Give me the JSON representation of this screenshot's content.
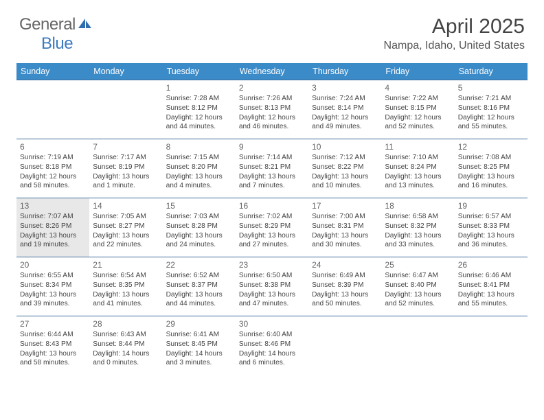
{
  "brand": {
    "part1": "General",
    "part2": "Blue"
  },
  "title": "April 2025",
  "location": "Nampa, Idaho, United States",
  "colors": {
    "header_bg": "#3b8bc9",
    "header_text": "#ffffff",
    "cell_border": "#3b6a9a",
    "highlight_bg": "#e8e8e8",
    "body_text": "#444444",
    "brand_blue": "#3b7bbf",
    "brand_gray": "#666666"
  },
  "weekdays": [
    "Sunday",
    "Monday",
    "Tuesday",
    "Wednesday",
    "Thursday",
    "Friday",
    "Saturday"
  ],
  "weeks": [
    [
      null,
      null,
      {
        "n": "1",
        "sr": "7:28 AM",
        "ss": "8:12 PM",
        "dl": "12 hours and 44 minutes."
      },
      {
        "n": "2",
        "sr": "7:26 AM",
        "ss": "8:13 PM",
        "dl": "12 hours and 46 minutes."
      },
      {
        "n": "3",
        "sr": "7:24 AM",
        "ss": "8:14 PM",
        "dl": "12 hours and 49 minutes."
      },
      {
        "n": "4",
        "sr": "7:22 AM",
        "ss": "8:15 PM",
        "dl": "12 hours and 52 minutes."
      },
      {
        "n": "5",
        "sr": "7:21 AM",
        "ss": "8:16 PM",
        "dl": "12 hours and 55 minutes."
      }
    ],
    [
      {
        "n": "6",
        "sr": "7:19 AM",
        "ss": "8:18 PM",
        "dl": "12 hours and 58 minutes."
      },
      {
        "n": "7",
        "sr": "7:17 AM",
        "ss": "8:19 PM",
        "dl": "13 hours and 1 minute."
      },
      {
        "n": "8",
        "sr": "7:15 AM",
        "ss": "8:20 PM",
        "dl": "13 hours and 4 minutes."
      },
      {
        "n": "9",
        "sr": "7:14 AM",
        "ss": "8:21 PM",
        "dl": "13 hours and 7 minutes."
      },
      {
        "n": "10",
        "sr": "7:12 AM",
        "ss": "8:22 PM",
        "dl": "13 hours and 10 minutes."
      },
      {
        "n": "11",
        "sr": "7:10 AM",
        "ss": "8:24 PM",
        "dl": "13 hours and 13 minutes."
      },
      {
        "n": "12",
        "sr": "7:08 AM",
        "ss": "8:25 PM",
        "dl": "13 hours and 16 minutes."
      }
    ],
    [
      {
        "n": "13",
        "sr": "7:07 AM",
        "ss": "8:26 PM",
        "dl": "13 hours and 19 minutes.",
        "hl": true
      },
      {
        "n": "14",
        "sr": "7:05 AM",
        "ss": "8:27 PM",
        "dl": "13 hours and 22 minutes."
      },
      {
        "n": "15",
        "sr": "7:03 AM",
        "ss": "8:28 PM",
        "dl": "13 hours and 24 minutes."
      },
      {
        "n": "16",
        "sr": "7:02 AM",
        "ss": "8:29 PM",
        "dl": "13 hours and 27 minutes."
      },
      {
        "n": "17",
        "sr": "7:00 AM",
        "ss": "8:31 PM",
        "dl": "13 hours and 30 minutes."
      },
      {
        "n": "18",
        "sr": "6:58 AM",
        "ss": "8:32 PM",
        "dl": "13 hours and 33 minutes."
      },
      {
        "n": "19",
        "sr": "6:57 AM",
        "ss": "8:33 PM",
        "dl": "13 hours and 36 minutes."
      }
    ],
    [
      {
        "n": "20",
        "sr": "6:55 AM",
        "ss": "8:34 PM",
        "dl": "13 hours and 39 minutes."
      },
      {
        "n": "21",
        "sr": "6:54 AM",
        "ss": "8:35 PM",
        "dl": "13 hours and 41 minutes."
      },
      {
        "n": "22",
        "sr": "6:52 AM",
        "ss": "8:37 PM",
        "dl": "13 hours and 44 minutes."
      },
      {
        "n": "23",
        "sr": "6:50 AM",
        "ss": "8:38 PM",
        "dl": "13 hours and 47 minutes."
      },
      {
        "n": "24",
        "sr": "6:49 AM",
        "ss": "8:39 PM",
        "dl": "13 hours and 50 minutes."
      },
      {
        "n": "25",
        "sr": "6:47 AM",
        "ss": "8:40 PM",
        "dl": "13 hours and 52 minutes."
      },
      {
        "n": "26",
        "sr": "6:46 AM",
        "ss": "8:41 PM",
        "dl": "13 hours and 55 minutes."
      }
    ],
    [
      {
        "n": "27",
        "sr": "6:44 AM",
        "ss": "8:43 PM",
        "dl": "13 hours and 58 minutes."
      },
      {
        "n": "28",
        "sr": "6:43 AM",
        "ss": "8:44 PM",
        "dl": "14 hours and 0 minutes."
      },
      {
        "n": "29",
        "sr": "6:41 AM",
        "ss": "8:45 PM",
        "dl": "14 hours and 3 minutes."
      },
      {
        "n": "30",
        "sr": "6:40 AM",
        "ss": "8:46 PM",
        "dl": "14 hours and 6 minutes."
      },
      null,
      null,
      null
    ]
  ],
  "labels": {
    "sunrise": "Sunrise:",
    "sunset": "Sunset:",
    "daylight": "Daylight:"
  }
}
